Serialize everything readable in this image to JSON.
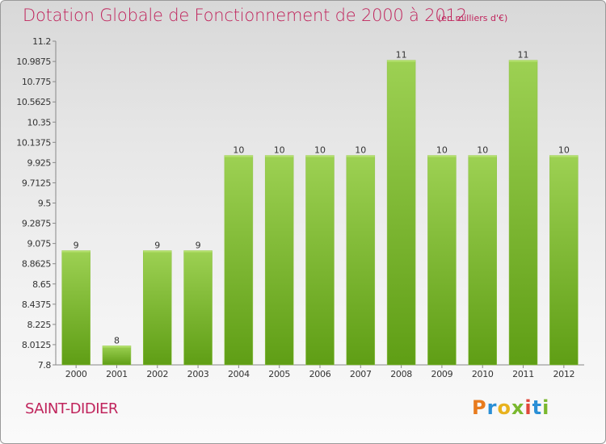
{
  "header": {
    "title": "Dotation Globale de Fonctionnement de 2000 à 2012",
    "subtitle": "(en milliers d'€)"
  },
  "footer": {
    "commune": "SAINT-DIDIER",
    "logo_text": "Proxiti",
    "logo_colors": [
      "#e87b1e",
      "#2a8fd6",
      "#e8b21e",
      "#7ab82e",
      "#e0483a",
      "#2a8fd6",
      "#7ab82e"
    ]
  },
  "colors": {
    "title": "#c0245c",
    "bar_light": "#9dd153",
    "bar_dark": "#5f9e15",
    "axis": "#888888"
  },
  "chart_data": {
    "type": "bar",
    "categories": [
      "2000",
      "2001",
      "2002",
      "2003",
      "2004",
      "2005",
      "2006",
      "2007",
      "2008",
      "2009",
      "2010",
      "2011",
      "2012"
    ],
    "values": [
      9,
      8,
      9,
      9,
      10,
      10,
      10,
      10,
      11,
      10,
      10,
      11,
      10
    ],
    "data_labels": [
      "9",
      "8",
      "9",
      "9",
      "10",
      "10",
      "10",
      "10",
      "11",
      "10",
      "10",
      "11",
      "10"
    ],
    "yticks": [
      "7.8",
      "8.0125",
      "8.225",
      "8.4375",
      "8.65",
      "8.8625",
      "9.075",
      "9.2875",
      "9.5",
      "9.7125",
      "9.925",
      "10.1375",
      "10.35",
      "10.5625",
      "10.775",
      "10.9875",
      "11.2"
    ],
    "ylim": [
      7.8,
      11.2
    ],
    "grid": false,
    "legend": "none"
  }
}
